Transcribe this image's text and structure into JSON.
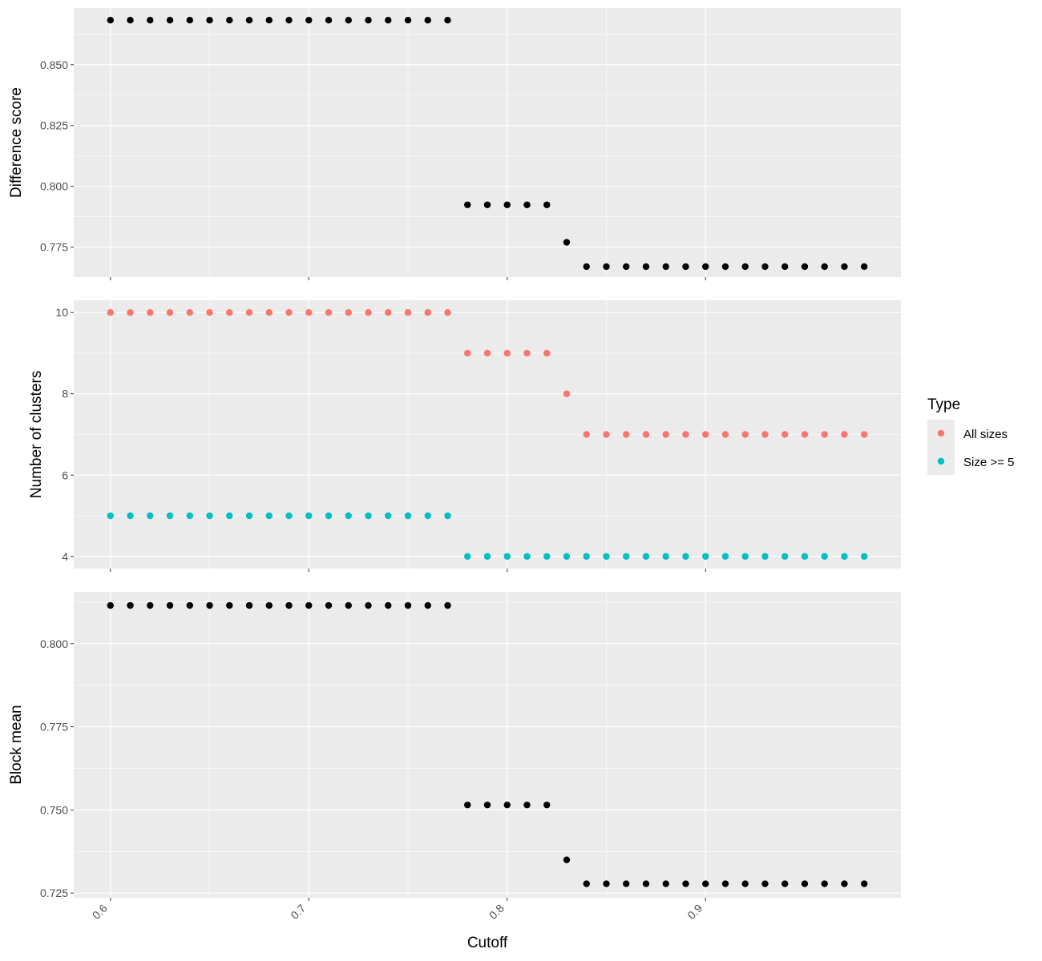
{
  "chart_data": {
    "type": "scatter",
    "xlabel": "Cutoff",
    "x_ticks": [
      0.6,
      0.7,
      0.8,
      0.9
    ],
    "x_tick_labels": [
      "0.6",
      "0.7",
      "0.8",
      "0.9"
    ],
    "xlim": [
      0.5815,
      0.9985
    ],
    "x": [
      0.6,
      0.61,
      0.62,
      0.63,
      0.64,
      0.65,
      0.66,
      0.67,
      0.68,
      0.69,
      0.7,
      0.71,
      0.72,
      0.73,
      0.74,
      0.75,
      0.76,
      0.77,
      0.78,
      0.79,
      0.8,
      0.81,
      0.82,
      0.83,
      0.84,
      0.85,
      0.86,
      0.87,
      0.88,
      0.89,
      0.9,
      0.91,
      0.92,
      0.93,
      0.94,
      0.95,
      0.96,
      0.97,
      0.98
    ],
    "grid": true,
    "background": "#ebebeb",
    "gridline_color": "#ffffff",
    "panels": [
      {
        "ylabel": "Difference score",
        "ylim": [
          0.7627,
          0.8733
        ],
        "y_ticks": [
          0.775,
          0.8,
          0.825,
          0.85
        ],
        "y_tick_labels": [
          "0.775",
          "0.800",
          "0.825",
          "0.850"
        ],
        "series": [
          {
            "color": "#000000",
            "values": [
              0.8683,
              0.8683,
              0.8683,
              0.8683,
              0.8683,
              0.8683,
              0.8683,
              0.8683,
              0.8683,
              0.8683,
              0.8683,
              0.8683,
              0.8683,
              0.8683,
              0.8683,
              0.8683,
              0.8683,
              0.8683,
              0.7924,
              0.7924,
              0.7924,
              0.7924,
              0.7924,
              0.777,
              0.767,
              0.767,
              0.767,
              0.767,
              0.767,
              0.767,
              0.767,
              0.767,
              0.767,
              0.767,
              0.767,
              0.767,
              0.767,
              0.767,
              0.767
            ]
          }
        ]
      },
      {
        "ylabel": "Number of clusters",
        "ylim": [
          3.7,
          10.3
        ],
        "y_ticks": [
          4,
          6,
          8,
          10
        ],
        "y_tick_labels": [
          "4",
          "6",
          "8",
          "10"
        ],
        "series": [
          {
            "name": "All sizes",
            "color": "#f8766d",
            "values": [
              10,
              10,
              10,
              10,
              10,
              10,
              10,
              10,
              10,
              10,
              10,
              10,
              10,
              10,
              10,
              10,
              10,
              10,
              9,
              9,
              9,
              9,
              9,
              8,
              7,
              7,
              7,
              7,
              7,
              7,
              7,
              7,
              7,
              7,
              7,
              7,
              7,
              7,
              7
            ]
          },
          {
            "name": "Size >= 5",
            "color": "#00bfc4",
            "values": [
              5,
              5,
              5,
              5,
              5,
              5,
              5,
              5,
              5,
              5,
              5,
              5,
              5,
              5,
              5,
              5,
              5,
              5,
              4,
              4,
              4,
              4,
              4,
              4,
              4,
              4,
              4,
              4,
              4,
              4,
              4,
              4,
              4,
              4,
              4,
              4,
              4,
              4,
              4
            ]
          }
        ]
      },
      {
        "ylabel": "Block mean",
        "ylim": [
          0.7236,
          0.8156
        ],
        "y_ticks": [
          0.725,
          0.75,
          0.775,
          0.8
        ],
        "y_tick_labels": [
          "0.725",
          "0.750",
          "0.775",
          "0.800"
        ],
        "series": [
          {
            "color": "#000000",
            "values": [
              0.8115,
              0.8115,
              0.8115,
              0.8115,
              0.8115,
              0.8115,
              0.8115,
              0.8115,
              0.8115,
              0.8115,
              0.8115,
              0.8115,
              0.8115,
              0.8115,
              0.8115,
              0.8115,
              0.8115,
              0.8115,
              0.7515,
              0.7515,
              0.7515,
              0.7515,
              0.7515,
              0.735,
              0.7278,
              0.7278,
              0.7278,
              0.7278,
              0.7278,
              0.7278,
              0.7278,
              0.7278,
              0.7278,
              0.7278,
              0.7278,
              0.7278,
              0.7278,
              0.7278,
              0.7278
            ]
          }
        ]
      }
    ],
    "legend": {
      "title": "Type",
      "position": "right",
      "items": [
        {
          "label": "All sizes",
          "color": "#f8766d"
        },
        {
          "label": "Size >= 5",
          "color": "#00bfc4"
        }
      ]
    }
  }
}
